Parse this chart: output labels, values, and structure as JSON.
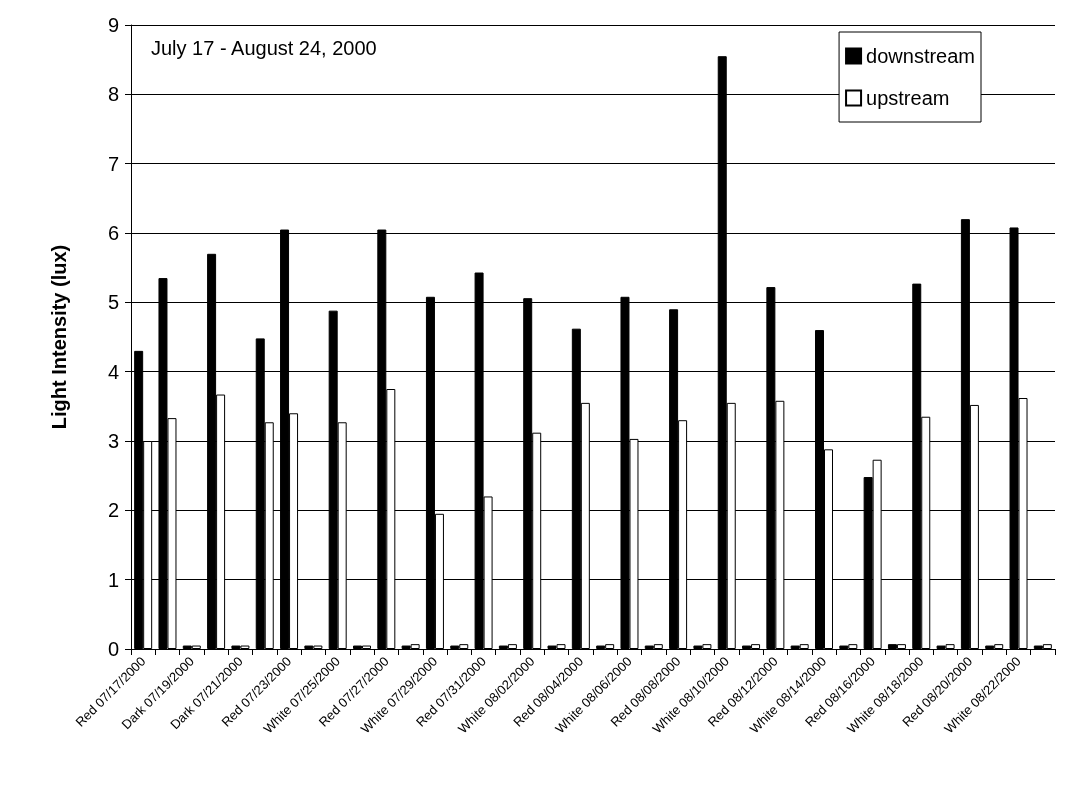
{
  "chart_data": {
    "type": "bar",
    "ylabel": "Light Intensity (lux)",
    "annotations": [
      "July 17 - August 24, 2000"
    ],
    "categories": [
      "Red 07/17/2000",
      null,
      "Dark 07/19/2000",
      null,
      "Dark 07/21/2000",
      null,
      "Red 07/23/2000",
      null,
      "White 07/25/2000",
      null,
      "Red 07/27/2000",
      null,
      "White 07/29/2000",
      null,
      "Red 07/31/2000",
      null,
      "White 08/02/2000",
      null,
      "Red 08/04/2000",
      null,
      "White 08/06/2000",
      null,
      "Red 08/08/2000",
      null,
      "White 08/10/2000",
      null,
      "Red 08/12/2000",
      null,
      "White 08/14/2000",
      null,
      "Red 08/16/2000",
      null,
      "White 08/18/2000",
      null,
      "Red 08/20/2000",
      null,
      "White 08/22/2000",
      null
    ],
    "series": [
      {
        "name": "downstream",
        "color": "#000000",
        "values": [
          4.3,
          5.35,
          0.05,
          5.7,
          0.05,
          4.48,
          6.05,
          0.05,
          4.88,
          0.05,
          6.05,
          0.05,
          5.08,
          0.05,
          5.43,
          0.05,
          5.06,
          0.05,
          4.62,
          0.05,
          5.08,
          0.05,
          4.9,
          0.05,
          8.55,
          0.05,
          5.22,
          0.05,
          4.6,
          0.05,
          2.48,
          0.07,
          5.27,
          0.05,
          6.2,
          0.05,
          6.08,
          0.05
        ]
      },
      {
        "name": "upstream",
        "color": "#ffffff",
        "values": [
          3.0,
          3.33,
          0.05,
          3.67,
          0.05,
          3.27,
          3.4,
          0.05,
          3.27,
          0.05,
          3.75,
          0.07,
          1.95,
          0.07,
          2.2,
          0.07,
          3.12,
          0.07,
          3.55,
          0.07,
          3.03,
          0.07,
          3.3,
          0.07,
          3.55,
          0.07,
          3.58,
          0.07,
          2.88,
          0.07,
          2.73,
          0.07,
          3.35,
          0.07,
          3.52,
          0.07,
          3.62,
          0.07
        ]
      }
    ],
    "ylim": [
      0,
      9
    ],
    "yticks": [
      0,
      1,
      2,
      3,
      4,
      5,
      6,
      7,
      8,
      9
    ],
    "grid": "y",
    "legend": "top right"
  }
}
